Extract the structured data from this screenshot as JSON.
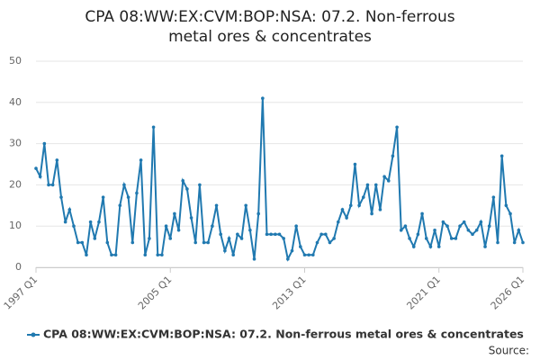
{
  "chart_data": {
    "type": "line",
    "title": "CPA 08:WW:EX:CVM:BOP:NSA: 07.2. Non-ferrous metal ores & concentrates",
    "source": "Source:",
    "categories": [
      "1997 Q1",
      null,
      null,
      null,
      null,
      null,
      null,
      null,
      null,
      null,
      null,
      null,
      null,
      null,
      null,
      null,
      null,
      null,
      null,
      null,
      null,
      null,
      null,
      null,
      null,
      null,
      null,
      null,
      null,
      null,
      null,
      null,
      "2005 Q1",
      null,
      null,
      null,
      null,
      null,
      null,
      null,
      null,
      null,
      null,
      null,
      null,
      null,
      null,
      null,
      null,
      null,
      null,
      null,
      null,
      null,
      null,
      null,
      null,
      null,
      null,
      null,
      null,
      null,
      null,
      null,
      "2013 Q1",
      null,
      null,
      null,
      null,
      null,
      null,
      null,
      null,
      null,
      null,
      null,
      null,
      null,
      null,
      null,
      null,
      null,
      null,
      null,
      null,
      null,
      null,
      null,
      null,
      null,
      null,
      null,
      null,
      null,
      null,
      null,
      "2021 Q1",
      null,
      null,
      null,
      null,
      null,
      null,
      null,
      null,
      null,
      null,
      null,
      null,
      null,
      null,
      null,
      null,
      null,
      null,
      null,
      "2026 Q1"
    ],
    "series": [
      {
        "name": "CPA 08:WW:EX:CVM:BOP:NSA: 07.2. Non-ferrous metal ores & concentrates",
        "color": "#2079b0",
        "values": [
          24,
          22,
          30,
          20,
          20,
          26,
          17,
          11,
          14,
          10,
          6,
          6,
          3,
          11,
          7,
          11,
          17,
          6,
          3,
          3,
          15,
          20,
          17,
          6,
          18,
          26,
          3,
          7,
          34,
          3,
          3,
          10,
          7,
          13,
          9,
          21,
          19,
          12,
          6,
          20,
          6,
          6,
          10,
          15,
          8,
          4,
          7,
          3,
          8,
          7,
          15,
          9,
          2,
          13,
          41,
          8,
          8,
          8,
          8,
          7,
          2,
          4,
          10,
          5,
          3,
          3,
          3,
          6,
          8,
          8,
          6,
          7,
          11,
          14,
          12,
          15,
          25,
          15,
          17,
          20,
          13,
          20,
          14,
          22,
          21,
          27,
          34,
          9,
          10,
          7,
          5,
          8,
          13,
          7,
          5,
          9,
          5,
          11,
          10,
          7,
          7,
          10,
          11,
          9,
          8,
          9,
          11,
          5,
          10,
          17,
          6,
          27,
          15,
          13,
          6,
          9,
          6
        ]
      }
    ],
    "ylim": [
      0,
      50
    ],
    "yticks": [
      0,
      10,
      20,
      30,
      40,
      50
    ],
    "grid": true
  }
}
